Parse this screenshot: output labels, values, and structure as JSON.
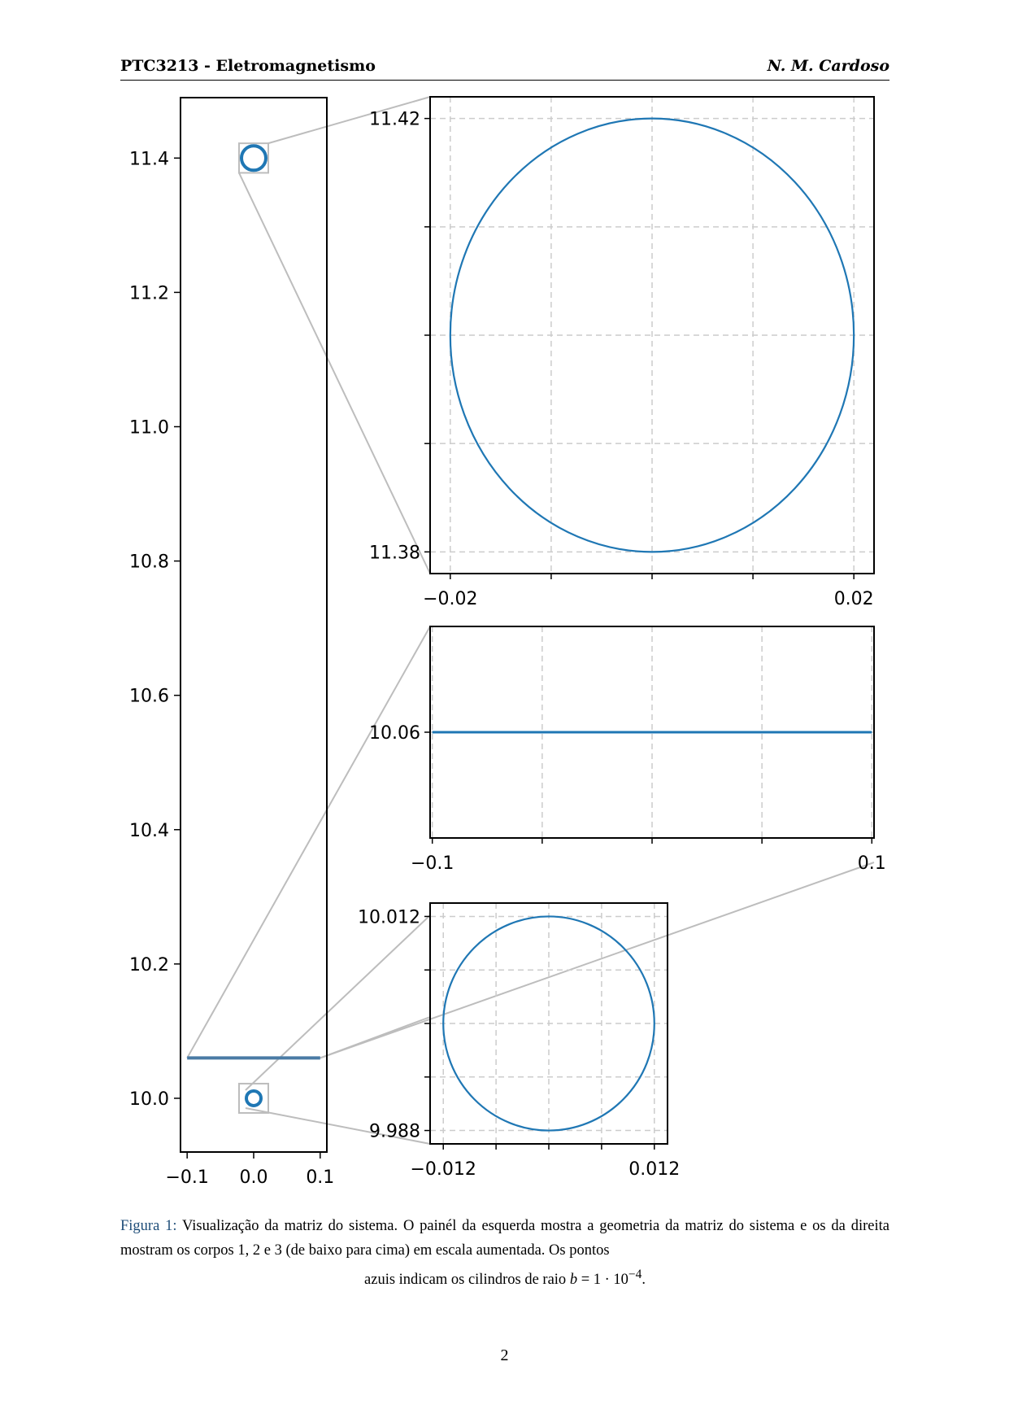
{
  "header": {
    "left": "PTC3213 - Eletromagnetismo",
    "right": "N. M. Cardoso"
  },
  "chart_data": [
    {
      "type": "scatter",
      "panel": "left",
      "xlim": [
        -0.11,
        0.11
      ],
      "ylim": [
        9.92,
        11.49
      ],
      "xticks": [
        "−0.1",
        "0.0",
        "0.1"
      ],
      "yticks": [
        "10.0",
        "10.2",
        "10.4",
        "10.6",
        "10.8",
        "11.0",
        "11.2",
        "11.4"
      ],
      "bodies": [
        {
          "name": "1",
          "shape": "circle",
          "center": [
            0.0,
            10.0
          ],
          "radius": 0.012
        },
        {
          "name": "2",
          "shape": "line",
          "x": [
            -0.1,
            0.1
          ],
          "y": 10.06
        },
        {
          "name": "3",
          "shape": "circle",
          "center": [
            0.0,
            11.4
          ],
          "radius": 0.02
        }
      ],
      "color": "#1f77b4",
      "grid": false
    },
    {
      "type": "line",
      "panel": "zoom-body-3",
      "xlim": [
        -0.022,
        0.022
      ],
      "ylim": [
        11.378,
        11.422
      ],
      "xticks": [
        "−0.02",
        "0.02"
      ],
      "yticks": [
        "11.38",
        "11.42"
      ],
      "circle": {
        "center": [
          0.0,
          11.4
        ],
        "radius": 0.02
      },
      "grid": true
    },
    {
      "type": "line",
      "panel": "zoom-body-2",
      "xlim": [
        -0.101,
        0.101
      ],
      "ylim": [
        10.01,
        10.11
      ],
      "xticks": [
        "−0.1",
        "0.1"
      ],
      "yticks": [
        "10.06"
      ],
      "segment": {
        "x": [
          -0.1,
          0.1
        ],
        "y": 10.06
      },
      "grid": true
    },
    {
      "type": "line",
      "panel": "zoom-body-1",
      "xlim": [
        -0.0135,
        0.0135
      ],
      "ylim": [
        9.9865,
        10.0135
      ],
      "xticks": [
        "−0.012",
        "0.012"
      ],
      "yticks": [
        "9.988",
        "10.012"
      ],
      "circle": {
        "center": [
          0.0,
          10.0
        ],
        "radius": 0.012
      },
      "grid": true
    }
  ],
  "caption": {
    "label": "Figura 1:",
    "text": "Visualização da matriz do sistema. O painél da esquerda mostra a geometria da matriz do sistema e os da direita mostram os corpos 1, 2 e 3 (de baixo para cima) em escala aumentada. Os pontos",
    "last_line_pre": "azuis indicam os cilindros de raio ",
    "b_symbol": "b",
    "equals": " = 1 · 10",
    "exponent": "−4",
    "end": "."
  },
  "page_number": "2"
}
